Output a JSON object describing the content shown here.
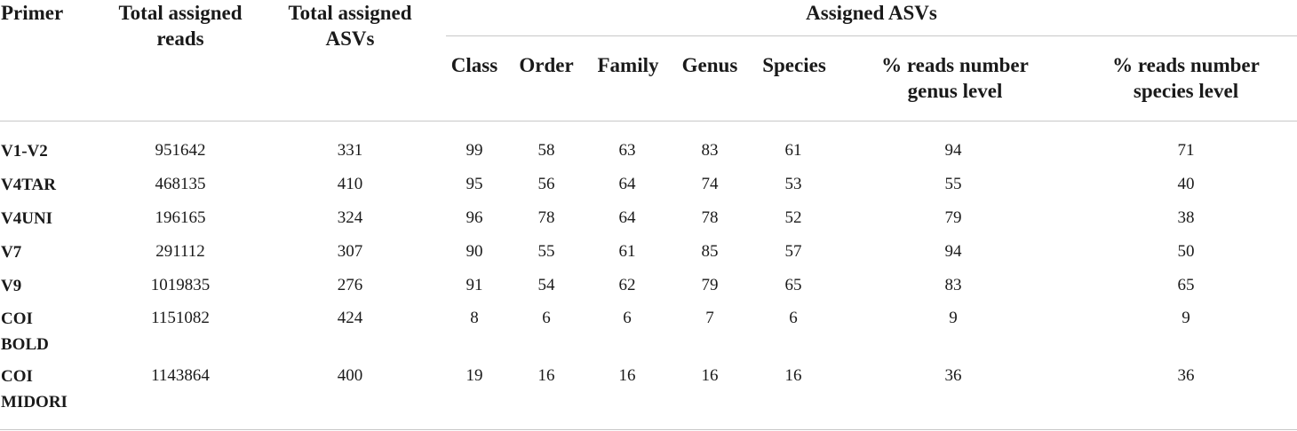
{
  "table": {
    "headers": {
      "primer": "Primer",
      "total_reads": [
        "Total assigned",
        "reads"
      ],
      "total_asvs": [
        "Total assigned",
        "ASVs"
      ],
      "assigned_asvs": "Assigned ASVs",
      "class": "Class",
      "order": "Order",
      "family": "Family",
      "genus": "Genus",
      "species": "Species",
      "pct_genus": [
        "% reads number",
        "genus level"
      ],
      "pct_species": [
        "% reads number",
        "species level"
      ]
    },
    "rows": [
      {
        "primer": [
          "V1-V2"
        ],
        "reads": "951642",
        "asvs": "331",
        "class": "99",
        "order": "58",
        "family": "63",
        "genus": "83",
        "species": "61",
        "pct_genus": "94",
        "pct_species": "71"
      },
      {
        "primer": [
          "V4TAR"
        ],
        "reads": "468135",
        "asvs": "410",
        "class": "95",
        "order": "56",
        "family": "64",
        "genus": "74",
        "species": "53",
        "pct_genus": "55",
        "pct_species": "40"
      },
      {
        "primer": [
          "V4UNI"
        ],
        "reads": "196165",
        "asvs": "324",
        "class": "96",
        "order": "78",
        "family": "64",
        "genus": "78",
        "species": "52",
        "pct_genus": "79",
        "pct_species": "38"
      },
      {
        "primer": [
          "V7"
        ],
        "reads": "291112",
        "asvs": "307",
        "class": "90",
        "order": "55",
        "family": "61",
        "genus": "85",
        "species": "57",
        "pct_genus": "94",
        "pct_species": "50"
      },
      {
        "primer": [
          "V9"
        ],
        "reads": "1019835",
        "asvs": "276",
        "class": "91",
        "order": "54",
        "family": "62",
        "genus": "79",
        "species": "65",
        "pct_genus": "83",
        "pct_species": "65"
      },
      {
        "primer": [
          "COI",
          "BOLD"
        ],
        "reads": "1151082",
        "asvs": "424",
        "class": "8",
        "order": "6",
        "family": "6",
        "genus": "7",
        "species": "6",
        "pct_genus": "9",
        "pct_species": "9"
      },
      {
        "primer": [
          "COI",
          "MIDORI"
        ],
        "reads": "1143864",
        "asvs": "400",
        "class": "19",
        "order": "16",
        "family": "16",
        "genus": "16",
        "species": "16",
        "pct_genus": "36",
        "pct_species": "36"
      }
    ]
  }
}
